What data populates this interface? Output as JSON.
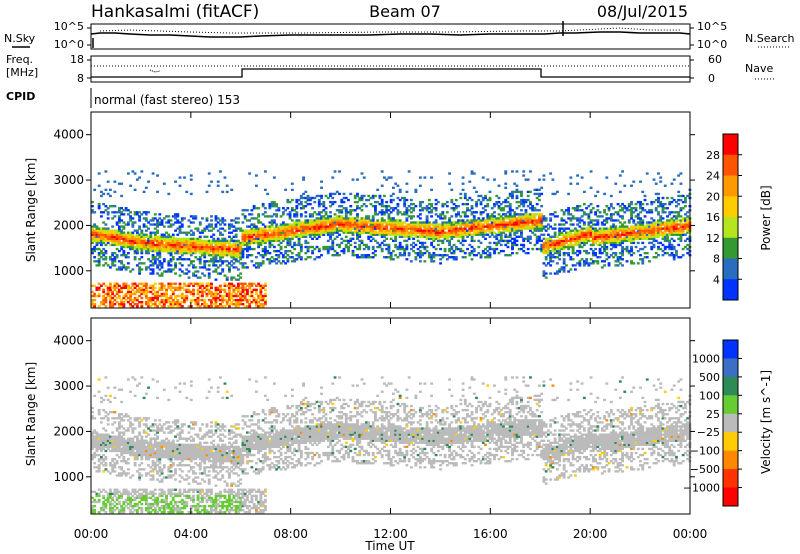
{
  "header": {
    "station": "Hankasalmi (fitACF)",
    "beam": "Beam 07",
    "date": "08/Jul/2015"
  },
  "noise_panel": {
    "left_label": "N.Sky",
    "right_label": "N.Search",
    "left_ticks": [
      "10^5",
      "10^0"
    ],
    "right_ticks": [
      "10^5",
      "10^0"
    ]
  },
  "freq_panel": {
    "left_label_1": "Freq.",
    "left_label_2": "[MHz]",
    "left_ticks": [
      "18",
      "8"
    ],
    "right_label": "Nave",
    "right_ticks": [
      "60",
      "0"
    ]
  },
  "cpid": {
    "label": "CPID",
    "value": "normal (fast stereo) 153"
  },
  "chart_data": [
    {
      "type": "heatmap",
      "name": "power",
      "ylabel": "Slant Range [km]",
      "yticks": [
        "4000",
        "3000",
        "2000",
        "1000"
      ],
      "ylim": [
        180,
        4500
      ],
      "xlim": [
        0,
        24
      ],
      "colorbar": {
        "label": "Power [dB]",
        "ticks": [
          "28",
          "24",
          "20",
          "16",
          "12",
          "8",
          "4"
        ],
        "colors": [
          "#ff0000",
          "#ff5500",
          "#ff9900",
          "#ffcc00",
          "#b5e61d",
          "#339933",
          "#2a6dbf",
          "#0033ff"
        ]
      }
    },
    {
      "type": "heatmap",
      "name": "velocity",
      "ylabel": "Slant Range [km]",
      "yticks": [
        "4000",
        "3000",
        "2000",
        "1000"
      ],
      "ylim": [
        180,
        4500
      ],
      "xlim": [
        0,
        24
      ],
      "xlabel": "Time UT",
      "xticks": [
        "00:00",
        "04:00",
        "08:00",
        "12:00",
        "16:00",
        "20:00",
        "00:00"
      ],
      "colorbar": {
        "label": "Velocity [m s^-1]",
        "ticks": [
          "1000",
          "500",
          "100",
          "25",
          "−25",
          "−100",
          "−500",
          "−1000"
        ],
        "colors": [
          "#0033ff",
          "#3a6fc4",
          "#2e8b57",
          "#66cc33",
          "#bbbbbb",
          "#ffcc00",
          "#ff8800",
          "#ff3300",
          "#ff0000"
        ]
      }
    }
  ]
}
